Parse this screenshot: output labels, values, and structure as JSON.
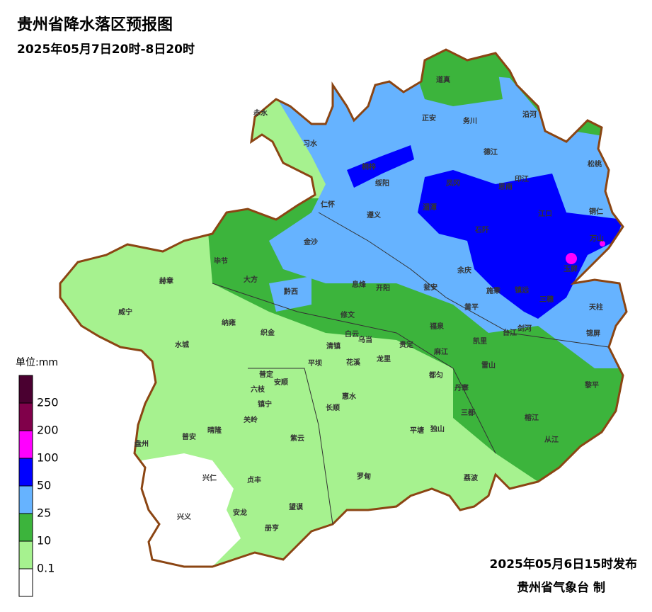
{
  "header": {
    "title": "贵州省降水落区预报图",
    "subtitle": "2025年05月7日20时-8日20时"
  },
  "legend": {
    "unit": "单位:mm",
    "labels": [
      "250",
      "200",
      "100",
      "50",
      "25",
      "10",
      "0.1"
    ],
    "colors": [
      "#4a0030",
      "#80004a",
      "#ff00ff",
      "#0000ff",
      "#66b3ff",
      "#3cb43c",
      "#a6f28f",
      "#ffffff"
    ]
  },
  "counties": [
    "赤水",
    "习水",
    "道真",
    "正安",
    "务川",
    "沿河",
    "桐梓",
    "德江",
    "松桃",
    "绥阳",
    "凤冈",
    "思南",
    "印江",
    "仁怀",
    "湄潭",
    "遵义",
    "江口",
    "铜仁",
    "石阡",
    "万山",
    "金沙",
    "余庆",
    "玉屏",
    "毕节",
    "大方",
    "赫章",
    "黔西",
    "息烽",
    "开阳",
    "瓮安",
    "施秉",
    "镇远",
    "三穗",
    "天柱",
    "黄平",
    "威宁",
    "修文",
    "纳雍",
    "织金",
    "台江",
    "剑河",
    "福泉",
    "锦屏",
    "白云",
    "乌当",
    "清镇",
    "贵定",
    "凯里",
    "雷山",
    "水城",
    "麻江",
    "平坝",
    "花溪",
    "龙里",
    "丹寨",
    "都匀",
    "黎平",
    "普定",
    "安顺",
    "六枝",
    "惠水",
    "镇宁",
    "三都",
    "长顺",
    "榕江",
    "关岭",
    "平塘",
    "独山",
    "从江",
    "盘州",
    "普安",
    "晴隆",
    "紫云",
    "兴仁",
    "贞丰",
    "罗甸",
    "荔波",
    "望谟",
    "兴义",
    "安龙",
    "册亨"
  ],
  "footer": {
    "date": "2025年05月6日15时发布",
    "agency": "贵州省气象台 制"
  }
}
